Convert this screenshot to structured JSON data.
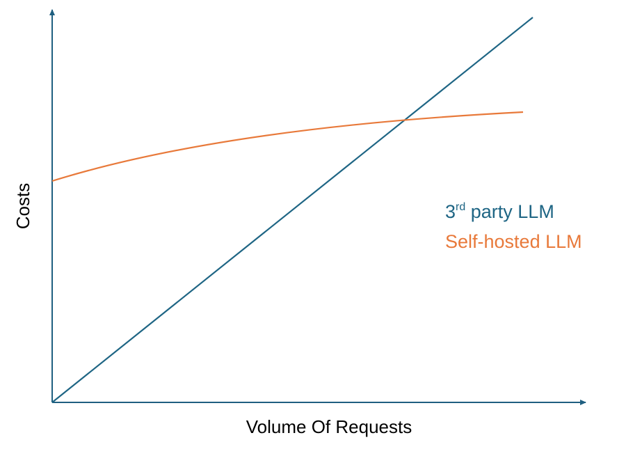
{
  "axes": {
    "y_label": "Costs",
    "x_label": "Volume Of Requests"
  },
  "legend": [
    {
      "base": "3",
      "sup": "rd",
      "rest": " party LLM"
    },
    {
      "text": "Self-hosted LLM"
    }
  ]
}
